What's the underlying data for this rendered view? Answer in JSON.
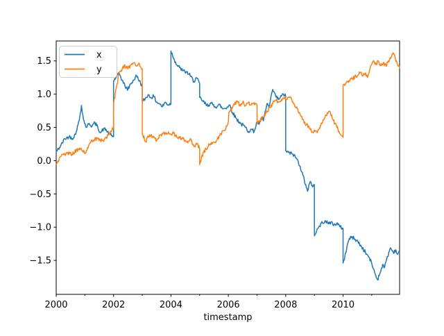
{
  "figure": {
    "background": "#ffffff"
  },
  "chart_data": {
    "type": "line",
    "title": "",
    "xlabel": "timestamp",
    "ylabel": "",
    "grid": false,
    "xlim": [
      2000,
      2011.97
    ],
    "ylim": [
      -2.01,
      1.8
    ],
    "x_ticks": [
      2000,
      2002,
      2004,
      2006,
      2008,
      2010
    ],
    "x_tick_labels": [
      "2000",
      "2002",
      "2004",
      "2006",
      "2008",
      "2010"
    ],
    "x_minor_ticks": [
      2001,
      2003,
      2005,
      2007,
      2009,
      2011
    ],
    "y_ticks": [
      1.5,
      1.0,
      0.5,
      0.0,
      -0.5,
      -1.0,
      -1.5
    ],
    "y_tick_labels": [
      "1.5",
      "1.0",
      "0.5",
      "0.0",
      "−0.5",
      "−1.0",
      "−1.5"
    ],
    "legend": {
      "position": "upper left",
      "entries": [
        {
          "label": "x",
          "color": "#1f77b4"
        },
        {
          "label": "y",
          "color": "#ff7f0e"
        }
      ]
    },
    "series": [
      {
        "name": "x",
        "color": "#1f77b4",
        "keypoints": [
          [
            2000.0,
            0.13
          ],
          [
            2000.15,
            0.22
          ],
          [
            2000.3,
            0.33
          ],
          [
            2000.45,
            0.36
          ],
          [
            2000.6,
            0.34
          ],
          [
            2000.7,
            0.44
          ],
          [
            2000.8,
            0.6
          ],
          [
            2000.88,
            0.83
          ],
          [
            2000.95,
            0.62
          ],
          [
            2001.05,
            0.5
          ],
          [
            2001.15,
            0.56
          ],
          [
            2001.25,
            0.52
          ],
          [
            2001.35,
            0.57
          ],
          [
            2001.45,
            0.5
          ],
          [
            2001.55,
            0.42
          ],
          [
            2001.65,
            0.48
          ],
          [
            2001.75,
            0.46
          ],
          [
            2001.85,
            0.4
          ],
          [
            2002.0,
            0.36
          ],
          [
            2002.0,
            1.2
          ],
          [
            2002.1,
            1.26
          ],
          [
            2002.2,
            1.31
          ],
          [
            2002.3,
            1.21
          ],
          [
            2002.4,
            1.12
          ],
          [
            2002.5,
            1.07
          ],
          [
            2002.6,
            1.16
          ],
          [
            2002.7,
            1.21
          ],
          [
            2002.8,
            1.28
          ],
          [
            2002.9,
            1.2
          ],
          [
            2003.0,
            1.12
          ],
          [
            2003.0,
            0.88
          ],
          [
            2003.1,
            0.93
          ],
          [
            2003.2,
            0.99
          ],
          [
            2003.3,
            0.95
          ],
          [
            2003.4,
            0.97
          ],
          [
            2003.5,
            0.88
          ],
          [
            2003.6,
            0.86
          ],
          [
            2003.7,
            0.81
          ],
          [
            2003.8,
            0.88
          ],
          [
            2003.9,
            0.84
          ],
          [
            2004.0,
            0.86
          ],
          [
            2004.0,
            1.65
          ],
          [
            2004.1,
            1.54
          ],
          [
            2004.2,
            1.44
          ],
          [
            2004.3,
            1.4
          ],
          [
            2004.42,
            1.35
          ],
          [
            2004.55,
            1.33
          ],
          [
            2004.67,
            1.28
          ],
          [
            2004.8,
            1.19
          ],
          [
            2004.88,
            1.25
          ],
          [
            2005.0,
            1.16
          ],
          [
            2005.0,
            0.95
          ],
          [
            2005.1,
            0.9
          ],
          [
            2005.25,
            0.83
          ],
          [
            2005.4,
            0.86
          ],
          [
            2005.55,
            0.81
          ],
          [
            2005.7,
            0.84
          ],
          [
            2005.8,
            0.78
          ],
          [
            2005.95,
            0.8
          ],
          [
            2006.05,
            0.84
          ],
          [
            2006.15,
            0.72
          ],
          [
            2006.3,
            0.62
          ],
          [
            2006.45,
            0.55
          ],
          [
            2006.6,
            0.5
          ],
          [
            2006.7,
            0.44
          ],
          [
            2006.8,
            0.47
          ],
          [
            2006.9,
            0.44
          ],
          [
            2007.0,
            0.58
          ],
          [
            2007.08,
            0.55
          ],
          [
            2007.15,
            0.65
          ],
          [
            2007.22,
            0.6
          ],
          [
            2007.35,
            0.86
          ],
          [
            2007.42,
            0.8
          ],
          [
            2007.55,
            1.07
          ],
          [
            2007.65,
            0.97
          ],
          [
            2007.75,
            0.92
          ],
          [
            2007.85,
            0.97
          ],
          [
            2007.92,
            1.0
          ],
          [
            2008.0,
            0.97
          ],
          [
            2008.0,
            0.15
          ],
          [
            2008.1,
            0.12
          ],
          [
            2008.25,
            0.1
          ],
          [
            2008.4,
            0.02
          ],
          [
            2008.5,
            -0.08
          ],
          [
            2008.6,
            -0.22
          ],
          [
            2008.7,
            -0.36
          ],
          [
            2008.76,
            -0.46
          ],
          [
            2008.85,
            -0.32
          ],
          [
            2008.92,
            -0.38
          ],
          [
            2009.0,
            -0.36
          ],
          [
            2009.0,
            -1.13
          ],
          [
            2009.08,
            -1.05
          ],
          [
            2009.18,
            -0.98
          ],
          [
            2009.28,
            -0.93
          ],
          [
            2009.38,
            -0.9
          ],
          [
            2009.48,
            -0.95
          ],
          [
            2009.58,
            -0.92
          ],
          [
            2009.68,
            -0.97
          ],
          [
            2009.78,
            -0.94
          ],
          [
            2009.88,
            -0.99
          ],
          [
            2010.0,
            -1.02
          ],
          [
            2010.0,
            -1.54
          ],
          [
            2010.06,
            -1.45
          ],
          [
            2010.14,
            -1.28
          ],
          [
            2010.22,
            -1.17
          ],
          [
            2010.32,
            -1.15
          ],
          [
            2010.42,
            -1.18
          ],
          [
            2010.52,
            -1.22
          ],
          [
            2010.65,
            -1.3
          ],
          [
            2010.78,
            -1.38
          ],
          [
            2010.9,
            -1.45
          ],
          [
            2011.0,
            -1.55
          ],
          [
            2011.1,
            -1.68
          ],
          [
            2011.2,
            -1.79
          ],
          [
            2011.28,
            -1.7
          ],
          [
            2011.38,
            -1.56
          ],
          [
            2011.45,
            -1.6
          ],
          [
            2011.55,
            -1.44
          ],
          [
            2011.65,
            -1.31
          ],
          [
            2011.75,
            -1.38
          ],
          [
            2011.83,
            -1.34
          ],
          [
            2011.9,
            -1.41
          ],
          [
            2011.97,
            -1.38
          ]
        ]
      },
      {
        "name": "y",
        "color": "#ff7f0e",
        "keypoints": [
          [
            2000.0,
            -0.05
          ],
          [
            2000.1,
            0.02
          ],
          [
            2000.25,
            0.09
          ],
          [
            2000.4,
            0.12
          ],
          [
            2000.55,
            0.09
          ],
          [
            2000.7,
            0.16
          ],
          [
            2000.85,
            0.18
          ],
          [
            2001.0,
            0.11
          ],
          [
            2001.15,
            0.25
          ],
          [
            2001.3,
            0.31
          ],
          [
            2001.45,
            0.33
          ],
          [
            2001.6,
            0.3
          ],
          [
            2001.75,
            0.34
          ],
          [
            2001.88,
            0.43
          ],
          [
            2002.0,
            0.51
          ],
          [
            2002.0,
            0.85
          ],
          [
            2002.1,
            1.1
          ],
          [
            2002.2,
            1.33
          ],
          [
            2002.3,
            1.38
          ],
          [
            2002.4,
            1.43
          ],
          [
            2002.5,
            1.38
          ],
          [
            2002.6,
            1.44
          ],
          [
            2002.7,
            1.47
          ],
          [
            2002.8,
            1.42
          ],
          [
            2002.9,
            1.46
          ],
          [
            2003.0,
            1.38
          ],
          [
            2003.0,
            0.4
          ],
          [
            2003.12,
            0.29
          ],
          [
            2003.25,
            0.39
          ],
          [
            2003.38,
            0.35
          ],
          [
            2003.5,
            0.31
          ],
          [
            2003.65,
            0.39
          ],
          [
            2003.8,
            0.42
          ],
          [
            2003.95,
            0.4
          ],
          [
            2004.1,
            0.41
          ],
          [
            2004.25,
            0.33
          ],
          [
            2004.4,
            0.35
          ],
          [
            2004.55,
            0.28
          ],
          [
            2004.7,
            0.31
          ],
          [
            2004.82,
            0.22
          ],
          [
            2004.92,
            0.26
          ],
          [
            2005.0,
            0.18
          ],
          [
            2005.0,
            -0.06
          ],
          [
            2005.06,
            0.04
          ],
          [
            2005.14,
            0.13
          ],
          [
            2005.3,
            0.22
          ],
          [
            2005.47,
            0.27
          ],
          [
            2005.6,
            0.31
          ],
          [
            2005.74,
            0.41
          ],
          [
            2005.85,
            0.45
          ],
          [
            2005.95,
            0.52
          ],
          [
            2006.0,
            0.58
          ],
          [
            2006.02,
            0.72
          ],
          [
            2006.15,
            0.8
          ],
          [
            2006.3,
            0.9
          ],
          [
            2006.4,
            0.84
          ],
          [
            2006.5,
            0.88
          ],
          [
            2006.6,
            0.83
          ],
          [
            2006.7,
            0.87
          ],
          [
            2006.8,
            0.84
          ],
          [
            2006.9,
            0.87
          ],
          [
            2007.0,
            0.84
          ],
          [
            2007.0,
            0.56
          ],
          [
            2007.1,
            0.6
          ],
          [
            2007.2,
            0.66
          ],
          [
            2007.32,
            0.72
          ],
          [
            2007.45,
            0.8
          ],
          [
            2007.55,
            0.86
          ],
          [
            2007.65,
            0.91
          ],
          [
            2007.75,
            0.88
          ],
          [
            2007.85,
            0.92
          ],
          [
            2007.95,
            0.95
          ],
          [
            2008.05,
            0.92
          ],
          [
            2008.15,
            0.96
          ],
          [
            2008.25,
            0.88
          ],
          [
            2008.4,
            0.78
          ],
          [
            2008.5,
            0.7
          ],
          [
            2008.6,
            0.62
          ],
          [
            2008.72,
            0.54
          ],
          [
            2008.82,
            0.5
          ],
          [
            2008.93,
            0.43
          ],
          [
            2009.0,
            0.46
          ],
          [
            2009.1,
            0.42
          ],
          [
            2009.22,
            0.53
          ],
          [
            2009.35,
            0.63
          ],
          [
            2009.45,
            0.72
          ],
          [
            2009.52,
            0.74
          ],
          [
            2009.62,
            0.64
          ],
          [
            2009.72,
            0.56
          ],
          [
            2009.82,
            0.48
          ],
          [
            2009.9,
            0.4
          ],
          [
            2010.0,
            0.35
          ],
          [
            2010.0,
            1.14
          ],
          [
            2010.1,
            1.17
          ],
          [
            2010.2,
            1.2
          ],
          [
            2010.33,
            1.23
          ],
          [
            2010.45,
            1.27
          ],
          [
            2010.55,
            1.3
          ],
          [
            2010.63,
            1.33
          ],
          [
            2010.7,
            1.28
          ],
          [
            2010.78,
            1.32
          ],
          [
            2010.85,
            1.25
          ],
          [
            2010.92,
            1.36
          ],
          [
            2011.0,
            1.45
          ],
          [
            2011.08,
            1.49
          ],
          [
            2011.15,
            1.45
          ],
          [
            2011.22,
            1.5
          ],
          [
            2011.3,
            1.43
          ],
          [
            2011.4,
            1.47
          ],
          [
            2011.5,
            1.42
          ],
          [
            2011.58,
            1.5
          ],
          [
            2011.67,
            1.55
          ],
          [
            2011.75,
            1.62
          ],
          [
            2011.82,
            1.54
          ],
          [
            2011.88,
            1.47
          ],
          [
            2011.93,
            1.42
          ],
          [
            2011.97,
            1.39
          ]
        ]
      }
    ],
    "render": {
      "noise_amplitude": 0.028,
      "noise_seed": 42,
      "step_years": 0.02
    }
  }
}
